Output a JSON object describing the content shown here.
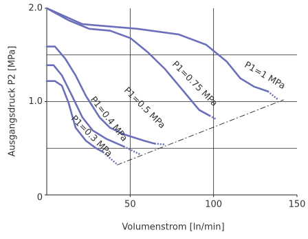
{
  "chart_data": {
    "type": "line",
    "xlabel": "Volumenstrom  [ln/min]",
    "ylabel": "Ausgangsdruck  P2  [MPa]",
    "xlim": [
      0,
      150
    ],
    "ylim": [
      0,
      2
    ],
    "xticks": [
      50,
      100,
      150
    ],
    "yticks": [
      {
        "value": 0,
        "label": "0"
      },
      {
        "value": 1,
        "label": "1.0"
      },
      {
        "value": 2,
        "label": "2.0"
      }
    ],
    "xgrid": [
      50,
      100
    ],
    "ygrid": [
      0.5,
      1,
      1.5
    ],
    "series": [
      {
        "name": "P1=1 MPa",
        "color": "#6b6fba",
        "x": [
          0,
          21.4,
          54.3,
          79,
          95.5,
          107.8,
          116,
          124.3,
          132.5,
          138.7
        ],
        "values": [
          2.0,
          1.83,
          1.78,
          1.72,
          1.61,
          1.43,
          1.25,
          1.16,
          1.11,
          1.02
        ]
      },
      {
        "name": "P1=0.75 MPa",
        "color": "#6b6fba",
        "x": [
          0,
          13.2,
          25.5,
          37.9,
          50.2,
          60.5,
          70.8,
          81.1,
          91.4,
          97.5,
          101.6
        ],
        "values": [
          2.0,
          1.87,
          1.78,
          1.76,
          1.68,
          1.53,
          1.35,
          1.13,
          0.91,
          0.85,
          0.81
        ]
      },
      {
        "name": "P1=0.5 MPa",
        "color": "#6b6fba",
        "x": [
          0,
          4.9,
          11.1,
          17.3,
          23.5,
          31.7,
          37.9,
          46.1,
          58.4,
          64.6,
          70.8
        ],
        "values": [
          1.59,
          1.59,
          1.46,
          1.28,
          1.06,
          0.83,
          0.72,
          0.65,
          0.58,
          0.55,
          0.54
        ]
      },
      {
        "name": "P1=0.4 MPa",
        "color": "#6b6fba",
        "x": [
          0,
          4.1,
          9.1,
          15.2,
          21.4,
          27.6,
          35.8,
          46.1,
          56.4
        ],
        "values": [
          1.39,
          1.39,
          1.28,
          1.06,
          0.83,
          0.69,
          0.6,
          0.52,
          0.43
        ]
      },
      {
        "name": "P1=0.3 MPa",
        "color": "#6b6fba",
        "x": [
          0,
          4.9,
          9.1,
          13.2,
          17.3,
          23.5,
          29.6,
          33.7,
          42
        ],
        "values": [
          1.22,
          1.22,
          1.17,
          0.98,
          0.72,
          0.58,
          0.5,
          0.46,
          0.33
        ]
      }
    ],
    "reference_line": {
      "x": [
        42,
        142
      ],
      "values": [
        0.32,
        1.02
      ]
    }
  }
}
